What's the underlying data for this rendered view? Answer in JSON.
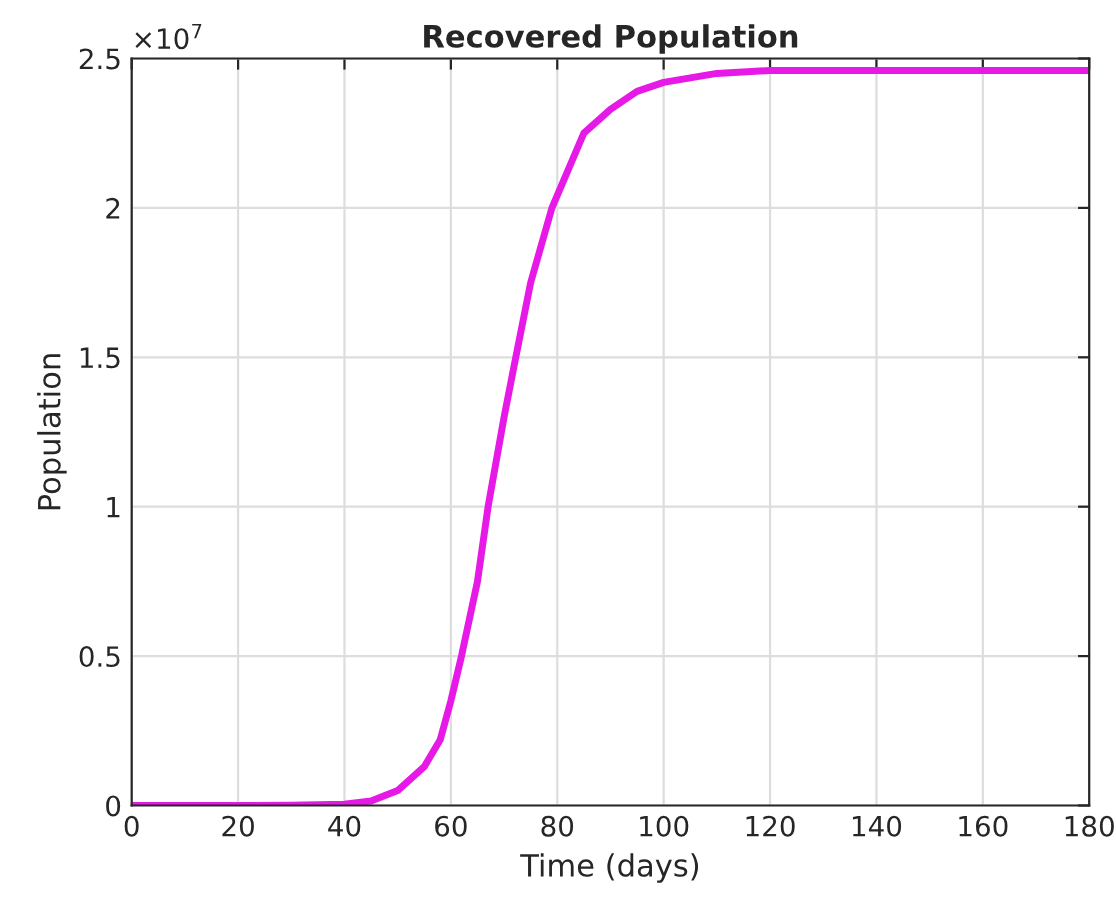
{
  "chart_data": {
    "type": "line",
    "title": "Recovered Population",
    "xlabel": "Time (days)",
    "ylabel": "Population",
    "annotations": [
      "×10$^{7}$"
    ],
    "series": [
      {
        "color": "#e619e6",
        "x": [
          0,
          20,
          30,
          40,
          45,
          50,
          55,
          58,
          60,
          62,
          65,
          67,
          70,
          72.2,
          75,
          79,
          85,
          90,
          95,
          100,
          110,
          120,
          140,
          180
        ],
        "values": [
          0,
          0,
          0.001,
          0.004,
          0.015,
          0.05,
          0.13,
          0.22,
          0.35,
          0.5,
          0.75,
          1.0,
          1.3,
          1.5,
          1.75,
          2.0,
          2.25,
          2.33,
          2.39,
          2.42,
          2.45,
          2.46,
          2.46,
          2.46
        ]
      }
    ],
    "xlim": [
      0,
      180
    ],
    "xticks": [
      0,
      20,
      40,
      60,
      80,
      100,
      120,
      140,
      160,
      180
    ],
    "ylim": [
      0,
      2.5
    ],
    "yticks": [
      0,
      0.5,
      1,
      1.5,
      2,
      2.5
    ],
    "grid": true,
    "legend": false,
    "marker": "none",
    "line_style": "solid"
  }
}
